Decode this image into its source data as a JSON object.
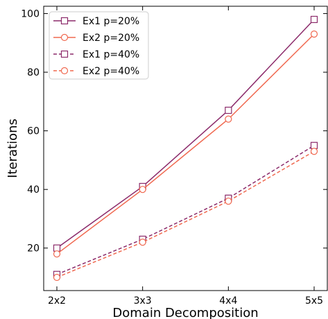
{
  "chart_data": {
    "type": "line",
    "title": "",
    "xlabel": "Domain Decomposition",
    "ylabel": "Iterations",
    "categories": [
      "2x2",
      "3x3",
      "4x4",
      "5x5"
    ],
    "ylim": [
      5.5,
      102.5
    ],
    "yticks": [
      20,
      40,
      60,
      80,
      100
    ],
    "grid": false,
    "legend_position": "top-left",
    "series": [
      {
        "name": "Ex1 p=20%",
        "values": [
          20,
          41,
          67,
          98
        ],
        "color": "#8b2a6a",
        "marker": "square",
        "dash": "solid"
      },
      {
        "name": "Ex2 p=20%",
        "values": [
          18,
          40,
          64,
          93
        ],
        "color": "#f0684f",
        "marker": "circle",
        "dash": "solid"
      },
      {
        "name": "Ex1 p=40%",
        "values": [
          11,
          23,
          37,
          55
        ],
        "color": "#8b2a6a",
        "marker": "square",
        "dash": "dashed"
      },
      {
        "name": "Ex2 p=40%",
        "values": [
          10,
          22,
          36,
          53
        ],
        "color": "#f0684f",
        "marker": "circle",
        "dash": "dashed"
      }
    ]
  }
}
